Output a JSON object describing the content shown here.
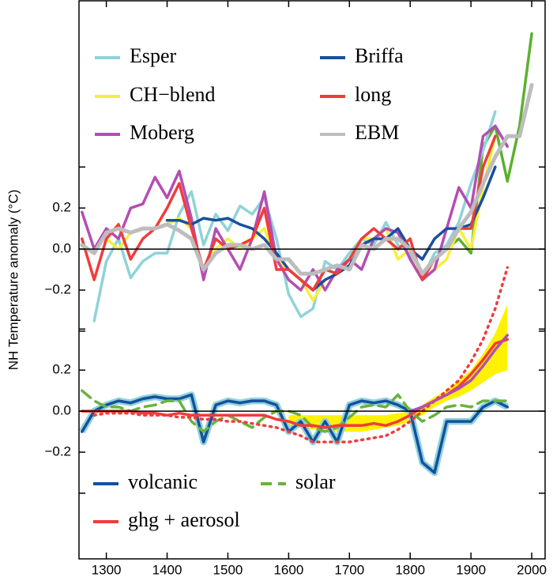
{
  "ylabel": "NH Temperature anomaly (°C)",
  "chart_data": [
    {
      "type": "line",
      "x": [
        1260,
        1280,
        1300,
        1320,
        1340,
        1360,
        1380,
        1400,
        1420,
        1440,
        1460,
        1480,
        1500,
        1520,
        1540,
        1560,
        1580,
        1600,
        1620,
        1640,
        1660,
        1680,
        1700,
        1720,
        1740,
        1760,
        1780,
        1800,
        1820,
        1840,
        1860,
        1880,
        1900,
        1920,
        1940,
        1960,
        1980,
        2000
      ],
      "xlim": [
        1255,
        2022
      ],
      "ylim": [
        -1.51,
        1.21
      ],
      "yticks": [
        0.2,
        {
          "value": 0,
          "label": "0.0"
        },
        {
          "value": -0.2,
          "label": "−0.2"
        }
      ],
      "minor_yticks": [
        0.4,
        -0.4
      ],
      "zero_line": true,
      "series": [
        {
          "color": "#5cb030",
          "values": [
            null,
            null,
            null,
            null,
            null,
            null,
            null,
            null,
            null,
            null,
            null,
            null,
            null,
            null,
            null,
            null,
            null,
            null,
            null,
            null,
            null,
            null,
            null,
            null,
            null,
            null,
            null,
            null,
            null,
            null,
            0,
            0.05,
            -0.02,
            0.5,
            0.6,
            0.33,
            0.6,
            1.05
          ]
        },
        {
          "name": "Esper",
          "color": "#8fd3d8",
          "values": [
            null,
            -0.35,
            -0.06,
            0.05,
            -0.14,
            -0.06,
            -0.02,
            -0.02,
            0.17,
            0.28,
            0.02,
            0.17,
            0.09,
            0.21,
            0.17,
            0.25,
            0.05,
            -0.22,
            -0.33,
            -0.29,
            -0.06,
            -0.1,
            -0.02,
            0.05,
            0.02,
            0.13,
            0.02,
            -0.02,
            -0.14,
            -0.02,
            0.02,
            0.13,
            0.32,
            0.48,
            0.67,
            null,
            null,
            null
          ]
        },
        {
          "name": "CH−blend",
          "color": "#f5ef3a",
          "values": [
            null,
            null,
            0.05,
            0,
            0.08,
            0.1,
            0.1,
            0.12,
            0.15,
            0.1,
            -0.1,
            0,
            0.05,
            0,
            0.05,
            0.1,
            -0.05,
            -0.1,
            -0.15,
            -0.25,
            -0.15,
            -0.12,
            -0.05,
            0.05,
            0.05,
            0.1,
            -0.05,
            0,
            -0.15,
            -0.1,
            -0.05,
            0.1,
            0,
            0.3,
            0.55,
            null,
            null,
            null
          ]
        },
        {
          "name": "Moberg",
          "color": "#b54db3",
          "values": [
            0.18,
            0,
            0.1,
            0.05,
            0.2,
            0.22,
            0.35,
            0.25,
            0.38,
            0.15,
            -0.15,
            0.1,
            0,
            -0.1,
            0.05,
            0.28,
            -0.05,
            -0.15,
            -0.2,
            -0.1,
            -0.2,
            -0.1,
            -0.05,
            -0.1,
            0.05,
            0.1,
            0.08,
            -0.05,
            -0.15,
            -0.1,
            0.1,
            0.3,
            0.2,
            0.55,
            0.6,
            0.5,
            null,
            null
          ]
        },
        {
          "name": "Briffa",
          "color": "#1a4f9c",
          "values": [
            null,
            null,
            null,
            null,
            null,
            null,
            null,
            0.14,
            0.14,
            0.12,
            0.15,
            0.14,
            0.15,
            0.12,
            0.1,
            0.05,
            -0.02,
            -0.1,
            -0.15,
            -0.2,
            -0.15,
            -0.12,
            -0.08,
            0.02,
            0.05,
            0.05,
            0.1,
            0,
            -0.05,
            0.05,
            0.1,
            0.1,
            0.12,
            0.25,
            0.4,
            null,
            null,
            null
          ]
        },
        {
          "name": "long",
          "color": "#f03c3c",
          "values": [
            0.05,
            -0.15,
            0.05,
            0.12,
            -0.05,
            0.05,
            0.1,
            0.2,
            0.32,
            0.1,
            -0.1,
            0.05,
            0,
            0.02,
            0.05,
            0.2,
            -0.1,
            -0.1,
            -0.15,
            -0.2,
            -0.1,
            -0.12,
            -0.05,
            0.05,
            0.1,
            0.05,
            0,
            0.05,
            -0.15,
            -0.05,
            0,
            0.1,
            0.1,
            0.4,
            0.55,
            null,
            null,
            null
          ]
        },
        {
          "name": "EBM",
          "color": "#bdbdbd",
          "width": 5,
          "values": [
            0.02,
            -0.02,
            0.08,
            0.1,
            0.08,
            0.1,
            0.1,
            0.12,
            0.09,
            0.05,
            -0.1,
            -0.02,
            0.02,
            0.02,
            0,
            0.02,
            -0.05,
            -0.05,
            -0.12,
            -0.12,
            -0.1,
            -0.08,
            -0.1,
            0.02,
            0,
            0.05,
            0.05,
            0,
            -0.12,
            -0.05,
            0,
            0.1,
            0.18,
            0.32,
            0.45,
            0.55,
            0.55,
            0.8
          ]
        }
      ]
    },
    {
      "type": "line",
      "x": [
        1260,
        1280,
        1300,
        1320,
        1340,
        1360,
        1380,
        1400,
        1420,
        1440,
        1460,
        1480,
        1500,
        1520,
        1540,
        1560,
        1580,
        1600,
        1620,
        1640,
        1660,
        1680,
        1700,
        1720,
        1740,
        1760,
        1780,
        1800,
        1820,
        1840,
        1860,
        1880,
        1900,
        1920,
        1940,
        1960,
        1980,
        2000
      ],
      "xlim": [
        1255,
        2022
      ],
      "xticks": [
        1300,
        1400,
        1500,
        1600,
        1700,
        1800,
        1900,
        2000
      ],
      "ylim": [
        -0.72,
        2.0
      ],
      "yticks": [
        0.2,
        {
          "value": 0,
          "label": "0.0"
        },
        {
          "value": -0.2,
          "label": "−0.2"
        }
      ],
      "minor_yticks": [
        0.4,
        -0.4
      ],
      "zero_line": true,
      "series": [
        {
          "type": "band",
          "color": "#fff200",
          "lower": [
            null,
            null,
            null,
            null,
            null,
            null,
            null,
            null,
            null,
            null,
            null,
            null,
            null,
            null,
            null,
            null,
            null,
            -0.08,
            -0.08,
            -0.09,
            -0.09,
            -0.1,
            -0.1,
            -0.1,
            -0.09,
            -0.08,
            -0.07,
            -0.05,
            -0.02,
            0.02,
            0.05,
            0.07,
            0.1,
            0.14,
            0.18,
            0.2,
            null,
            null
          ],
          "upper": [
            null,
            null,
            null,
            null,
            null,
            null,
            null,
            null,
            null,
            null,
            null,
            null,
            null,
            null,
            null,
            null,
            null,
            -0.02,
            -0.02,
            -0.02,
            -0.02,
            -0.02,
            -0.02,
            -0.02,
            -0.02,
            -0.02,
            -0.01,
            0,
            0.03,
            0.07,
            0.1,
            0.15,
            0.2,
            0.28,
            0.38,
            0.52,
            null,
            null
          ]
        },
        {
          "name": "volcanic",
          "color": "#1450a0",
          "halo_color": "#8fd3d8",
          "values": [
            -0.1,
            0,
            0.03,
            0.05,
            0.04,
            0.06,
            0.07,
            0.06,
            0.06,
            0.08,
            -0.15,
            0.03,
            0.05,
            0.04,
            0.05,
            0.05,
            0.03,
            -0.1,
            -0.05,
            -0.15,
            -0.05,
            -0.15,
            0.03,
            0.05,
            0.04,
            0.05,
            0.03,
            0,
            -0.25,
            -0.3,
            -0.05,
            -0.05,
            -0.05,
            0.02,
            0.05,
            0.02,
            null,
            null
          ]
        },
        {
          "name": "solar",
          "color": "#6ab23e",
          "dash": "dashed",
          "values": [
            0.1,
            0.05,
            0.02,
            0.02,
            0,
            0.02,
            0.03,
            0.05,
            0.05,
            -0.05,
            -0.1,
            -0.05,
            -0.02,
            -0.05,
            -0.08,
            -0.03,
            0,
            0,
            -0.02,
            -0.08,
            -0.1,
            -0.08,
            -0.03,
            0.02,
            0.03,
            0.02,
            0.08,
            0,
            -0.05,
            -0.02,
            0.02,
            0.03,
            0.02,
            0.05,
            0.05,
            0.05,
            null,
            null
          ]
        },
        {
          "color": "#f03c3c",
          "dash": "dotted",
          "values": [
            null,
            -0.02,
            -0.01,
            -0.01,
            -0.01,
            -0.02,
            -0.02,
            -0.02,
            -0.03,
            -0.03,
            -0.04,
            -0.04,
            -0.05,
            -0.05,
            -0.06,
            -0.07,
            -0.08,
            -0.1,
            -0.12,
            -0.15,
            -0.15,
            -0.15,
            -0.15,
            -0.14,
            -0.13,
            -0.12,
            -0.09,
            -0.05,
            0,
            0.05,
            0.1,
            0.15,
            0.24,
            0.35,
            0.5,
            0.7,
            null,
            null
          ]
        },
        {
          "name": "ghg + aerosol",
          "color": "#f03c3c",
          "values": [
            0,
            0,
            0,
            0,
            0,
            -0.01,
            -0.01,
            -0.02,
            -0.01,
            -0.02,
            -0.02,
            -0.02,
            -0.02,
            -0.02,
            -0.02,
            -0.02,
            -0.04,
            -0.05,
            -0.07,
            -0.07,
            -0.08,
            -0.07,
            -0.07,
            -0.07,
            -0.06,
            -0.07,
            -0.05,
            -0.02,
            0.02,
            0.05,
            0.08,
            0.12,
            0.18,
            0.25,
            0.33,
            0.35,
            null,
            null
          ]
        },
        {
          "color": "#b54db3",
          "values": [
            null,
            null,
            null,
            null,
            null,
            null,
            null,
            null,
            null,
            null,
            null,
            null,
            null,
            null,
            null,
            null,
            null,
            null,
            null,
            null,
            null,
            null,
            null,
            null,
            null,
            null,
            null,
            0,
            0.02,
            0.05,
            0.08,
            0.11,
            0.15,
            0.22,
            0.3,
            0.37,
            null,
            null
          ]
        }
      ]
    }
  ]
}
